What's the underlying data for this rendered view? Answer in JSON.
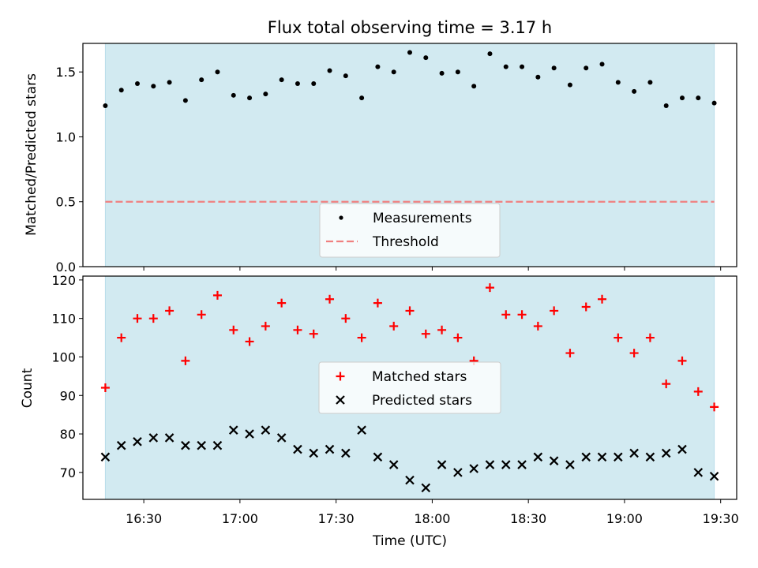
{
  "chart_data": [
    {
      "type": "scatter",
      "title": "Flux total observing time = 3.17 h",
      "xlabel": "",
      "ylabel": "Matched/Predicted stars",
      "ylim": [
        0,
        1.72
      ],
      "yticks": [
        0.0,
        0.5,
        1.0,
        1.5
      ],
      "ytick_labels": [
        "0.0",
        "0.5",
        "1.0",
        "1.5"
      ],
      "xlim": [
        "16:11",
        "19:35"
      ],
      "shaded_interval": [
        "16:18",
        "19:28"
      ],
      "shade_color": "#add8e6",
      "threshold": {
        "name": "Threshold",
        "value": 0.5,
        "color": "#f08080",
        "style": "dashed"
      },
      "legend_position": "lower center",
      "series": [
        {
          "name": "Measurements",
          "marker": "dot",
          "color": "#000000",
          "x": [
            "16:18",
            "16:23",
            "16:28",
            "16:33",
            "16:38",
            "16:43",
            "16:48",
            "16:53",
            "16:58",
            "17:03",
            "17:08",
            "17:13",
            "17:18",
            "17:23",
            "17:28",
            "17:33",
            "17:38",
            "17:43",
            "17:48",
            "17:53",
            "17:58",
            "18:03",
            "18:08",
            "18:13",
            "18:18",
            "18:23",
            "18:28",
            "18:33",
            "18:38",
            "18:43",
            "18:48",
            "18:53",
            "18:58",
            "19:03",
            "19:08",
            "19:13",
            "19:18",
            "19:23",
            "19:28"
          ],
          "y": [
            1.24,
            1.36,
            1.41,
            1.39,
            1.42,
            1.28,
            1.44,
            1.5,
            1.32,
            1.3,
            1.33,
            1.44,
            1.41,
            1.41,
            1.51,
            1.47,
            1.3,
            1.54,
            1.5,
            1.65,
            1.61,
            1.49,
            1.5,
            1.39,
            1.64,
            1.54,
            1.54,
            1.46,
            1.53,
            1.4,
            1.53,
            1.56,
            1.42,
            1.35,
            1.42,
            1.24,
            1.3,
            1.3,
            1.26
          ]
        }
      ]
    },
    {
      "type": "scatter",
      "title": "",
      "xlabel": "Time (UTC)",
      "ylabel": "Count",
      "ylim": [
        63,
        121
      ],
      "yticks": [
        70,
        80,
        90,
        100,
        110,
        120
      ],
      "ytick_labels": [
        "70",
        "80",
        "90",
        "100",
        "110",
        "120"
      ],
      "xlim": [
        "16:11",
        "19:35"
      ],
      "xticks": [
        "16:30",
        "17:00",
        "17:30",
        "18:00",
        "18:30",
        "19:00",
        "19:30"
      ],
      "xtick_labels": [
        "16:30",
        "17:00",
        "17:30",
        "18:00",
        "18:30",
        "19:00",
        "19:30"
      ],
      "shaded_interval": [
        "16:18",
        "19:28"
      ],
      "shade_color": "#add8e6",
      "legend_position": "center",
      "series": [
        {
          "name": "Matched stars",
          "marker": "plus",
          "color": "#ff0000",
          "x": [
            "16:18",
            "16:23",
            "16:28",
            "16:33",
            "16:38",
            "16:43",
            "16:48",
            "16:53",
            "16:58",
            "17:03",
            "17:08",
            "17:13",
            "17:18",
            "17:23",
            "17:28",
            "17:33",
            "17:38",
            "17:43",
            "17:48",
            "17:53",
            "17:58",
            "18:03",
            "18:08",
            "18:13",
            "18:18",
            "18:23",
            "18:28",
            "18:33",
            "18:38",
            "18:43",
            "18:48",
            "18:53",
            "18:58",
            "19:03",
            "19:08",
            "19:13",
            "19:18",
            "19:23",
            "19:28"
          ],
          "y": [
            92,
            105,
            110,
            110,
            112,
            99,
            111,
            116,
            107,
            104,
            108,
            114,
            107,
            106,
            115,
            110,
            105,
            114,
            108,
            112,
            106,
            107,
            105,
            99,
            118,
            111,
            111,
            108,
            112,
            101,
            113,
            115,
            105,
            101,
            105,
            93,
            99,
            91,
            87
          ]
        },
        {
          "name": "Predicted stars",
          "marker": "x",
          "color": "#000000",
          "x": [
            "16:18",
            "16:23",
            "16:28",
            "16:33",
            "16:38",
            "16:43",
            "16:48",
            "16:53",
            "16:58",
            "17:03",
            "17:08",
            "17:13",
            "17:18",
            "17:23",
            "17:28",
            "17:33",
            "17:38",
            "17:43",
            "17:48",
            "17:53",
            "17:58",
            "18:03",
            "18:08",
            "18:13",
            "18:18",
            "18:23",
            "18:28",
            "18:33",
            "18:38",
            "18:43",
            "18:48",
            "18:53",
            "18:58",
            "19:03",
            "19:08",
            "19:13",
            "19:18",
            "19:23",
            "19:28"
          ],
          "y": [
            74,
            77,
            78,
            79,
            79,
            77,
            77,
            77,
            81,
            80,
            81,
            79,
            76,
            75,
            76,
            75,
            81,
            74,
            72,
            68,
            66,
            72,
            70,
            71,
            72,
            72,
            72,
            74,
            73,
            72,
            74,
            74,
            74,
            75,
            74,
            75,
            76,
            70,
            69
          ]
        }
      ]
    }
  ]
}
